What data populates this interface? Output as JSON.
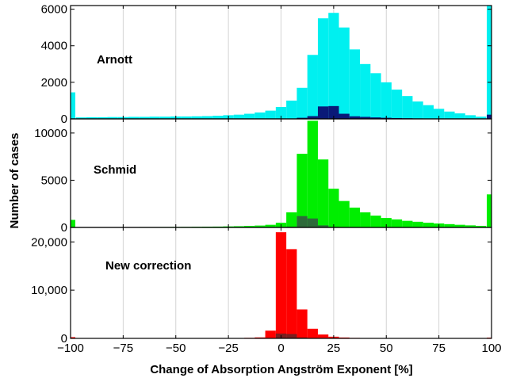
{
  "colors": {
    "arnott_main": "#00f0f0",
    "arnott_sub": "#0a1a78",
    "schmid_main": "#00ee00",
    "schmid_sub": "#2e6a3a",
    "new_main": "#ff0000",
    "new_sub": "#7a2020"
  },
  "chart_data": {
    "type": "bar",
    "subtype": "stacked-panel-histogram",
    "xlabel": "Change of Absorption Angström Exponent [%]",
    "ylabel": "Number of cases",
    "xlim": [
      -100,
      100
    ],
    "x_ticks": [
      -100,
      -75,
      -50,
      -25,
      0,
      25,
      50,
      75,
      100
    ],
    "x_tick_labels": [
      "−100",
      "−75",
      "−50",
      "−25",
      "0",
      "25",
      "50",
      "75",
      "100"
    ],
    "bin_width": 5,
    "grid": "vertical",
    "panels": [
      {
        "label": "Arnott",
        "ylim": [
          0,
          6200
        ],
        "y_ticks": [
          0,
          2000,
          4000,
          6000
        ],
        "y_tick_labels": [
          "0",
          "2000",
          "4000",
          "6000"
        ],
        "series": [
          {
            "color": "#00f0f0",
            "edge_bins": {
              "-100": 1450,
              "100": 6200
            },
            "bins": [
              {
                "x": -95,
                "value": 80
              },
              {
                "x": -90,
                "value": 90
              },
              {
                "x": -85,
                "value": 90
              },
              {
                "x": -80,
                "value": 100
              },
              {
                "x": -75,
                "value": 100
              },
              {
                "x": -70,
                "value": 110
              },
              {
                "x": -65,
                "value": 110
              },
              {
                "x": -60,
                "value": 120
              },
              {
                "x": -55,
                "value": 120
              },
              {
                "x": -50,
                "value": 130
              },
              {
                "x": -45,
                "value": 130
              },
              {
                "x": -40,
                "value": 140
              },
              {
                "x": -35,
                "value": 150
              },
              {
                "x": -30,
                "value": 170
              },
              {
                "x": -25,
                "value": 200
              },
              {
                "x": -20,
                "value": 230
              },
              {
                "x": -15,
                "value": 280
              },
              {
                "x": -10,
                "value": 350
              },
              {
                "x": -5,
                "value": 450
              },
              {
                "x": 0,
                "value": 650
              },
              {
                "x": 5,
                "value": 1000
              },
              {
                "x": 10,
                "value": 1700
              },
              {
                "x": 15,
                "value": 3500
              },
              {
                "x": 20,
                "value": 5500
              },
              {
                "x": 25,
                "value": 5800
              },
              {
                "x": 30,
                "value": 5000
              },
              {
                "x": 35,
                "value": 3800
              },
              {
                "x": 40,
                "value": 3000
              },
              {
                "x": 45,
                "value": 2500
              },
              {
                "x": 50,
                "value": 2000
              },
              {
                "x": 55,
                "value": 1600
              },
              {
                "x": 60,
                "value": 1250
              },
              {
                "x": 65,
                "value": 950
              },
              {
                "x": 70,
                "value": 750
              },
              {
                "x": 75,
                "value": 550
              },
              {
                "x": 80,
                "value": 400
              },
              {
                "x": 85,
                "value": 300
              },
              {
                "x": 90,
                "value": 200
              },
              {
                "x": 95,
                "value": 120
              }
            ]
          },
          {
            "color": "#0a1a78",
            "edge_bins": {
              "100": 230
            },
            "bins": [
              {
                "x": 5,
                "value": 20
              },
              {
                "x": 10,
                "value": 60
              },
              {
                "x": 15,
                "value": 150
              },
              {
                "x": 20,
                "value": 680
              },
              {
                "x": 25,
                "value": 700
              },
              {
                "x": 30,
                "value": 280
              },
              {
                "x": 35,
                "value": 140
              },
              {
                "x": 40,
                "value": 110
              },
              {
                "x": 45,
                "value": 80
              },
              {
                "x": 50,
                "value": 60
              },
              {
                "x": 55,
                "value": 45
              },
              {
                "x": 60,
                "value": 35
              },
              {
                "x": 65,
                "value": 25
              },
              {
                "x": 70,
                "value": 18
              },
              {
                "x": 75,
                "value": 12
              },
              {
                "x": 80,
                "value": 10
              },
              {
                "x": 85,
                "value": 8
              },
              {
                "x": 90,
                "value": 6
              }
            ]
          }
        ]
      },
      {
        "label": "Schmid",
        "ylim": [
          0,
          11500
        ],
        "y_ticks": [
          0,
          5000,
          10000
        ],
        "y_tick_labels": [
          "0",
          "5000",
          "10000"
        ],
        "series": [
          {
            "color": "#00ee00",
            "edge_bins": {
              "-100": 800,
              "100": 3500
            },
            "bins": [
              {
                "x": -95,
                "value": 30
              },
              {
                "x": -90,
                "value": 30
              },
              {
                "x": -85,
                "value": 35
              },
              {
                "x": -80,
                "value": 35
              },
              {
                "x": -75,
                "value": 40
              },
              {
                "x": -70,
                "value": 40
              },
              {
                "x": -65,
                "value": 45
              },
              {
                "x": -60,
                "value": 45
              },
              {
                "x": -55,
                "value": 50
              },
              {
                "x": -50,
                "value": 55
              },
              {
                "x": -45,
                "value": 60
              },
              {
                "x": -40,
                "value": 70
              },
              {
                "x": -35,
                "value": 80
              },
              {
                "x": -30,
                "value": 90
              },
              {
                "x": -25,
                "value": 110
              },
              {
                "x": -20,
                "value": 130
              },
              {
                "x": -15,
                "value": 160
              },
              {
                "x": -10,
                "value": 200
              },
              {
                "x": -5,
                "value": 280
              },
              {
                "x": 0,
                "value": 500
              },
              {
                "x": 5,
                "value": 1600
              },
              {
                "x": 10,
                "value": 7800
              },
              {
                "x": 15,
                "value": 11300
              },
              {
                "x": 20,
                "value": 7200
              },
              {
                "x": 25,
                "value": 4100
              },
              {
                "x": 30,
                "value": 2800
              },
              {
                "x": 35,
                "value": 2100
              },
              {
                "x": 40,
                "value": 1600
              },
              {
                "x": 45,
                "value": 1250
              },
              {
                "x": 50,
                "value": 1000
              },
              {
                "x": 55,
                "value": 850
              },
              {
                "x": 60,
                "value": 700
              },
              {
                "x": 65,
                "value": 600
              },
              {
                "x": 70,
                "value": 500
              },
              {
                "x": 75,
                "value": 420
              },
              {
                "x": 80,
                "value": 350
              },
              {
                "x": 85,
                "value": 280
              },
              {
                "x": 90,
                "value": 220
              },
              {
                "x": 95,
                "value": 160
              }
            ]
          },
          {
            "color": "#2e6a3a",
            "bins": [
              {
                "x": 5,
                "value": 80
              },
              {
                "x": 10,
                "value": 1200
              },
              {
                "x": 15,
                "value": 950
              },
              {
                "x": 20,
                "value": 220
              },
              {
                "x": 25,
                "value": 60
              },
              {
                "x": 30,
                "value": 25
              }
            ]
          }
        ]
      },
      {
        "label": "New correction",
        "ylim": [
          0,
          23000
        ],
        "y_ticks": [
          0,
          10000,
          20000
        ],
        "y_tick_labels": [
          "0",
          "10,000",
          "20,000"
        ],
        "series": [
          {
            "color": "#ff0000",
            "edge_bins": {
              "-100": 250,
              "100": 150
            },
            "bins": [
              {
                "x": -95,
                "value": 15
              },
              {
                "x": -90,
                "value": 15
              },
              {
                "x": -85,
                "value": 15
              },
              {
                "x": -80,
                "value": 15
              },
              {
                "x": -75,
                "value": 15
              },
              {
                "x": -70,
                "value": 20
              },
              {
                "x": -65,
                "value": 20
              },
              {
                "x": -60,
                "value": 20
              },
              {
                "x": -55,
                "value": 25
              },
              {
                "x": -50,
                "value": 25
              },
              {
                "x": -45,
                "value": 30
              },
              {
                "x": -40,
                "value": 35
              },
              {
                "x": -35,
                "value": 40
              },
              {
                "x": -30,
                "value": 50
              },
              {
                "x": -25,
                "value": 60
              },
              {
                "x": -20,
                "value": 80
              },
              {
                "x": -15,
                "value": 110
              },
              {
                "x": -10,
                "value": 200
              },
              {
                "x": -5,
                "value": 1600
              },
              {
                "x": 0,
                "value": 22000
              },
              {
                "x": 5,
                "value": 18500
              },
              {
                "x": 10,
                "value": 6000
              },
              {
                "x": 15,
                "value": 2000
              },
              {
                "x": 20,
                "value": 800
              },
              {
                "x": 25,
                "value": 350
              },
              {
                "x": 30,
                "value": 180
              },
              {
                "x": 35,
                "value": 100
              },
              {
                "x": 40,
                "value": 70
              },
              {
                "x": 45,
                "value": 50
              },
              {
                "x": 50,
                "value": 40
              },
              {
                "x": 55,
                "value": 30
              },
              {
                "x": 60,
                "value": 25
              },
              {
                "x": 65,
                "value": 20
              },
              {
                "x": 70,
                "value": 20
              },
              {
                "x": 75,
                "value": 15
              },
              {
                "x": 80,
                "value": 15
              },
              {
                "x": 85,
                "value": 15
              },
              {
                "x": 90,
                "value": 15
              },
              {
                "x": 95,
                "value": 15
              }
            ]
          },
          {
            "color": "#7a2020",
            "bins": [
              {
                "x": 0,
                "value": 1000
              },
              {
                "x": 5,
                "value": 900
              },
              {
                "x": 10,
                "value": 180
              }
            ]
          }
        ]
      }
    ]
  }
}
